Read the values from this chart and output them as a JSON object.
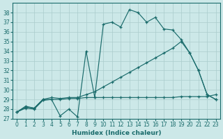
{
  "xlabel": "Humidex (Indice chaleur)",
  "bg_color": "#cce8e8",
  "line_color": "#1a6b6b",
  "grid_color": "#aacccc",
  "xlim": [
    -0.5,
    23.5
  ],
  "ylim": [
    27,
    39
  ],
  "yticks": [
    27,
    28,
    29,
    30,
    31,
    32,
    33,
    34,
    35,
    36,
    37,
    38
  ],
  "xticks": [
    0,
    1,
    2,
    3,
    4,
    5,
    6,
    7,
    8,
    9,
    10,
    11,
    12,
    13,
    14,
    15,
    16,
    17,
    18,
    19,
    20,
    21,
    22,
    23
  ],
  "line1_x": [
    0,
    1,
    2,
    3,
    4,
    5,
    6,
    7,
    8,
    9,
    10,
    11,
    12,
    13,
    14,
    15,
    16,
    17,
    18,
    19,
    20,
    21,
    22,
    23
  ],
  "line1_y": [
    27.7,
    28.2,
    28.1,
    29.0,
    29.0,
    27.3,
    28.0,
    27.2,
    34.0,
    29.2,
    36.8,
    37.0,
    36.5,
    38.3,
    38.0,
    37.0,
    37.5,
    36.3,
    36.2,
    35.2,
    33.8,
    32.0,
    29.5,
    29.0
  ],
  "line2_x": [
    0,
    1,
    2,
    3,
    4,
    5,
    6,
    7,
    8,
    9,
    10,
    11,
    12,
    13,
    14,
    15,
    16,
    17,
    18,
    19,
    20,
    21,
    22,
    23
  ],
  "line2_y": [
    27.7,
    28.3,
    28.1,
    29.0,
    29.2,
    29.1,
    29.2,
    29.2,
    29.5,
    29.8,
    30.3,
    30.8,
    31.3,
    31.8,
    32.3,
    32.8,
    33.3,
    33.8,
    34.3,
    35.0,
    33.8,
    32.0,
    29.5,
    29.0
  ],
  "line3_x": [
    0,
    1,
    2,
    3,
    4,
    5,
    6,
    7,
    8,
    9,
    10,
    11,
    12,
    13,
    14,
    15,
    16,
    17,
    18,
    19,
    20,
    21,
    22,
    23
  ],
  "line3_y": [
    27.7,
    28.1,
    28.0,
    28.9,
    29.0,
    29.0,
    29.1,
    29.1,
    29.2,
    29.2,
    29.2,
    29.2,
    29.2,
    29.2,
    29.2,
    29.2,
    29.2,
    29.2,
    29.2,
    29.3,
    29.3,
    29.3,
    29.3,
    29.5
  ]
}
